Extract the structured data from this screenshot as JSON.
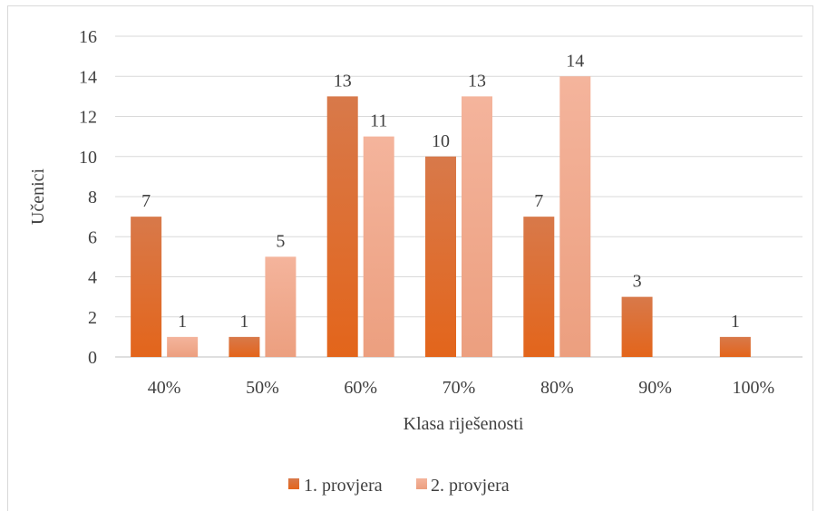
{
  "chart_data": {
    "type": "bar",
    "categories": [
      "40%",
      "50%",
      "60%",
      "70%",
      "80%",
      "90%",
      "100%"
    ],
    "series": [
      {
        "name": "1. provjera",
        "values": [
          7,
          1,
          13,
          10,
          7,
          3,
          1
        ],
        "color": "#d4621f"
      },
      {
        "name": "2. provjera",
        "values": [
          1,
          5,
          11,
          13,
          14,
          0,
          0
        ],
        "color": "#f0a184"
      }
    ],
    "data_labels_visible": [
      [
        true,
        true,
        true,
        true,
        true,
        true,
        true
      ],
      [
        true,
        true,
        true,
        true,
        true,
        false,
        false
      ]
    ],
    "xlabel": "Klasa riješenosti",
    "ylabel": "Učenici",
    "ylim": [
      0,
      16
    ],
    "yticks": [
      0,
      2,
      4,
      6,
      8,
      10,
      12,
      14,
      16
    ],
    "grid": true,
    "legend_position": "bottom"
  }
}
